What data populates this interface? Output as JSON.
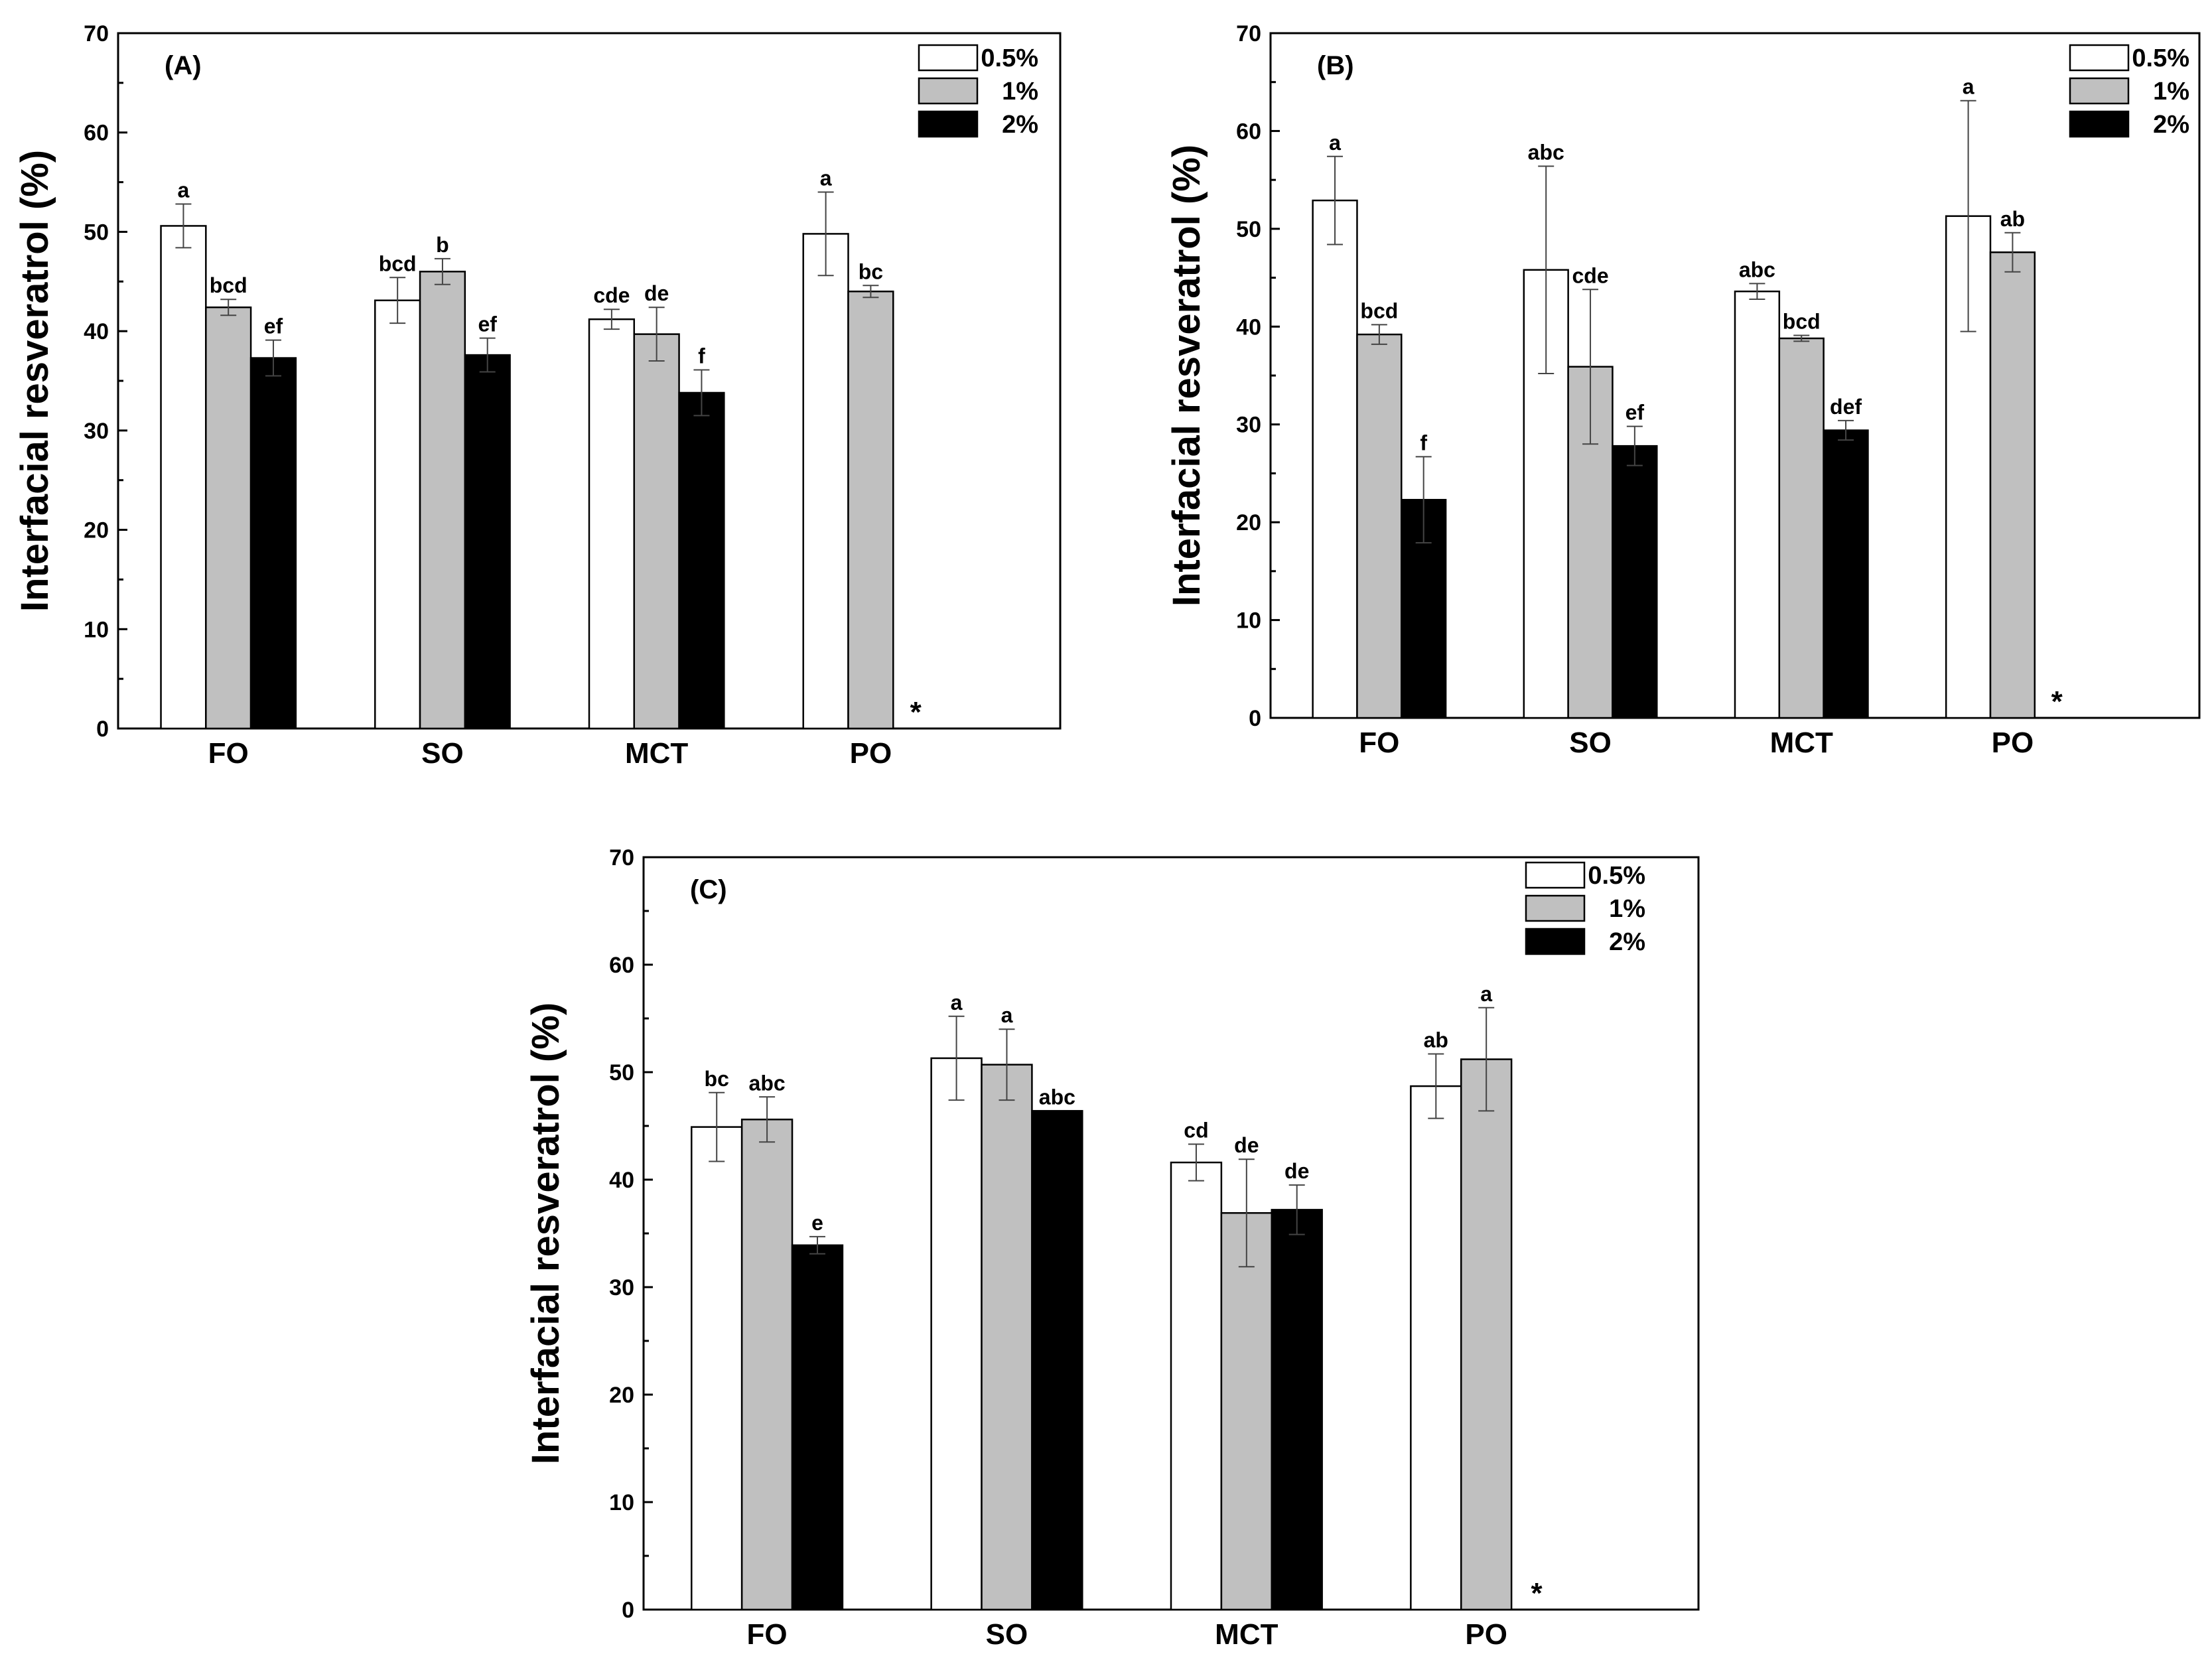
{
  "chart_data": [
    {
      "type": "bar",
      "panel_label": "(A)",
      "ylabel": "Interfacial resveratrol (%)",
      "ylim": [
        0,
        70
      ],
      "yticks": [
        0,
        10,
        20,
        30,
        40,
        50,
        60,
        70
      ],
      "categories": [
        "FO",
        "SO",
        "MCT",
        "PO"
      ],
      "legend_position": "top-right",
      "series": [
        {
          "name": "0.5%",
          "color": "#ffffff",
          "values": [
            50.6,
            43.1,
            41.2,
            49.8
          ],
          "errors": [
            2.2,
            2.3,
            1.0,
            4.2
          ],
          "labels": [
            "a",
            "bcd",
            "cde",
            "a"
          ]
        },
        {
          "name": "1%",
          "color": "#c0c0c0",
          "values": [
            42.4,
            46.0,
            39.7,
            44.0
          ],
          "errors": [
            0.8,
            1.3,
            2.7,
            0.6
          ],
          "labels": [
            "bcd",
            "b",
            "de",
            "bc"
          ]
        },
        {
          "name": "2%",
          "color": "#000000",
          "values": [
            37.3,
            37.6,
            33.8,
            null
          ],
          "errors": [
            1.8,
            1.7,
            2.3,
            null
          ],
          "labels": [
            "ef",
            "ef",
            "f",
            "*"
          ]
        }
      ]
    },
    {
      "type": "bar",
      "panel_label": "(B)",
      "ylabel": "Interfacial resveratrol (%)",
      "ylim": [
        0,
        70
      ],
      "yticks": [
        0,
        10,
        20,
        30,
        40,
        50,
        60,
        70
      ],
      "categories": [
        "FO",
        "SO",
        "MCT",
        "PO"
      ],
      "legend_position": "top-right",
      "series": [
        {
          "name": "0.5%",
          "color": "#ffffff",
          "values": [
            52.9,
            45.8,
            43.6,
            51.3
          ],
          "errors": [
            4.5,
            10.6,
            0.8,
            11.8
          ],
          "labels": [
            "a",
            "abc",
            "abc",
            "a"
          ]
        },
        {
          "name": "1%",
          "color": "#c0c0c0",
          "values": [
            39.2,
            35.9,
            38.8,
            47.6
          ],
          "errors": [
            1.0,
            7.9,
            0.3,
            2.0
          ],
          "labels": [
            "bcd",
            "cde",
            "bcd",
            "ab"
          ]
        },
        {
          "name": "2%",
          "color": "#000000",
          "values": [
            22.3,
            27.8,
            29.4,
            null
          ],
          "errors": [
            4.4,
            2.0,
            1.0,
            null
          ],
          "labels": [
            "f",
            "ef",
            "def",
            "*"
          ]
        }
      ]
    },
    {
      "type": "bar",
      "panel_label": "(C)",
      "ylabel": "Interfacial resveratrol (%)",
      "ylim": [
        0,
        70
      ],
      "yticks": [
        0,
        10,
        20,
        30,
        40,
        50,
        60,
        70
      ],
      "categories": [
        "FO",
        "SO",
        "MCT",
        "PO"
      ],
      "legend_position": "top-right",
      "series": [
        {
          "name": "0.5%",
          "color": "#ffffff",
          "values": [
            44.9,
            51.3,
            41.6,
            48.7
          ],
          "errors": [
            3.2,
            3.9,
            1.7,
            3.0
          ],
          "labels": [
            "bc",
            "a",
            "cd",
            "ab"
          ]
        },
        {
          "name": "1%",
          "color": "#c0c0c0",
          "values": [
            45.6,
            50.7,
            36.9,
            51.2
          ],
          "errors": [
            2.1,
            3.3,
            5.0,
            4.8
          ],
          "labels": [
            "abc",
            "a",
            "de",
            "a"
          ]
        },
        {
          "name": "2%",
          "color": "#000000",
          "values": [
            33.9,
            46.4,
            37.2,
            null
          ],
          "errors": [
            0.8,
            0.0,
            2.3,
            null
          ],
          "labels": [
            "e",
            "abc",
            "de",
            "*"
          ]
        }
      ]
    }
  ]
}
